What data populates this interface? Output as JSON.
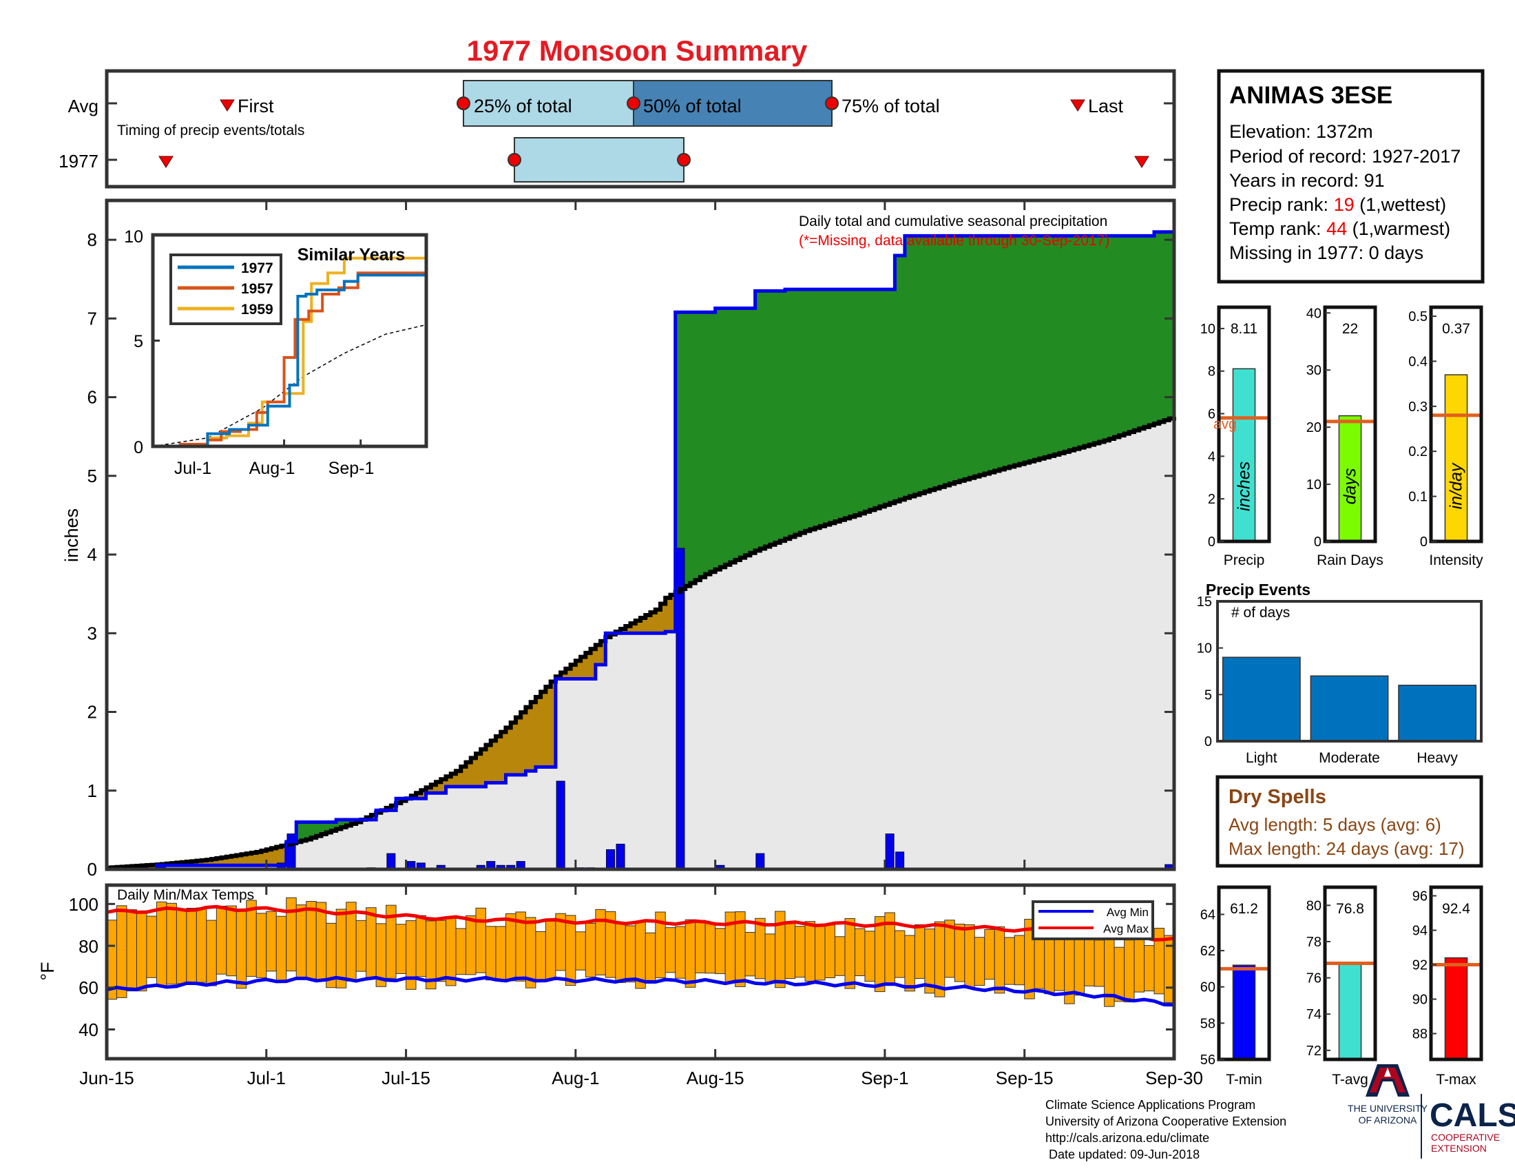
{
  "title": "1977 Monsoon Summary",
  "timing": {
    "row_labels": [
      "Avg",
      "1977"
    ],
    "avg_labels": {
      "first": "First",
      "p25": "25% of total",
      "p50": "50% of total",
      "p75": "75% of total",
      "last": "Last"
    },
    "note": "Timing of precip events/totals",
    "avg": {
      "first": "Jun-30",
      "p25": "Jul-24",
      "p50": "Aug-6",
      "p75": "Aug-26",
      "last": "Sep-16"
    },
    "year": {
      "first": "Jun-20",
      "p25": "Jul-28",
      "p50": "Aug-10",
      "last": "Sep-28"
    }
  },
  "station": {
    "name": "ANIMAS 3ESE",
    "elevation_label": "Elevation: 1372m",
    "period_label": "Period of record: 1927-2017",
    "years_label": "Years in record: 91",
    "precip_rank_prefix": "Precip rank: ",
    "precip_rank_value": "19",
    "precip_rank_suffix": " (1,wettest)",
    "temp_rank_prefix": "Temp rank: ",
    "temp_rank_value": "44",
    "temp_rank_suffix": " (1,warmest)",
    "missing_label": "Missing in 1977: 0 days"
  },
  "colors": {
    "blue": "#0000ee",
    "green": "#228b22",
    "brown": "#b8860b",
    "gray_fill": "#e8e8e8",
    "orange_bar": "#ffa500",
    "red": "#ee0000",
    "title_red": "#e31b23",
    "light_blue": "#add8e6",
    "steel_blue": "#4682b4",
    "avg_orange": "#e06020"
  },
  "main": {
    "ylabel": "inches",
    "annotation": "Daily total and cumulative seasonal precipitation",
    "missing_note": "(*=Missing, data available through 30-Sep-2017)",
    "x_ticks": [
      "Jun-15",
      "Jul-1",
      "Jul-15",
      "Aug-1",
      "Aug-15",
      "Sep-1",
      "Sep-15",
      "Sep-30"
    ],
    "y_ticks": [
      "0",
      "1",
      "2",
      "3",
      "4",
      "5",
      "6",
      "7",
      "8"
    ]
  },
  "inset": {
    "title": "Similar Years",
    "x_ticks": [
      "Jul-1",
      "Aug-1",
      "Sep-1"
    ],
    "y_ticks": [
      "0",
      "5",
      "10"
    ],
    "legend": [
      "1977",
      "1957",
      "1959"
    ]
  },
  "temps": {
    "title": "Daily Min/Max Temps",
    "ylabel": "°F",
    "y_ticks": [
      "40",
      "60",
      "80",
      "100"
    ],
    "legend": [
      "Avg Min",
      "Avg Max"
    ]
  },
  "stat_panels": [
    {
      "label": "Precip",
      "value": 8.11,
      "value_text": "8.11",
      "avg": 5.8,
      "ylim": [
        0,
        11
      ],
      "ticks": [
        "0",
        "2",
        "4",
        "6",
        "8",
        "10"
      ],
      "unit": "inches",
      "color": "#40e0d0",
      "avg_label": "avg"
    },
    {
      "label": "Rain Days",
      "value": 22,
      "value_text": "22",
      "avg": 21,
      "ylim": [
        0,
        41
      ],
      "ticks": [
        "0",
        "10",
        "20",
        "30",
        "40"
      ],
      "unit": "days",
      "color": "#7cfc00"
    },
    {
      "label": "Intensity",
      "value": 0.37,
      "value_text": "0.37",
      "avg": 0.28,
      "ylim": [
        0,
        0.52
      ],
      "ticks": [
        "0",
        "0.1",
        "0.2",
        "0.3",
        "0.4",
        "0.5"
      ],
      "unit": "in/day",
      "color": "#ffd700"
    }
  ],
  "events": {
    "title": "Precip Events",
    "ylabel": "# of days",
    "categories": [
      "Light",
      "Moderate",
      "Heavy"
    ],
    "values": [
      9,
      7,
      6
    ],
    "y_ticks": [
      "0",
      "5",
      "10",
      "15"
    ]
  },
  "dry_spells": {
    "title": "Dry Spells",
    "avg_length": "Avg length: 5 days (avg: 6)",
    "max_length": "Max length: 24 days (avg: 17)"
  },
  "temp_panels": [
    {
      "label": "T-min",
      "value": 61.2,
      "value_text": "61.2",
      "avg": 61.0,
      "ylim": [
        56,
        65.5
      ],
      "ticks": [
        "56",
        "58",
        "60",
        "62",
        "64"
      ],
      "color": "#0000ff"
    },
    {
      "label": "T-avg",
      "value": 76.8,
      "value_text": "76.8",
      "avg": 76.8,
      "ylim": [
        71.5,
        81
      ],
      "ticks": [
        "72",
        "74",
        "76",
        "78",
        "80"
      ],
      "color": "#40e0d0"
    },
    {
      "label": "T-max",
      "value": 92.4,
      "value_text": "92.4",
      "avg": 92.0,
      "ylim": [
        86.5,
        96.5
      ],
      "ticks": [
        "88",
        "90",
        "92",
        "94",
        "96"
      ],
      "color": "#ff0000"
    }
  ],
  "footer": {
    "line1": "Climate Science Applications Program",
    "line2": "University of Arizona Cooperative Extension",
    "line3": "http://cals.arizona.edu/climate",
    "line4": " Date updated: 09-Jun-2018"
  },
  "logos": {
    "ua_line1": "THE UNIVERSITY",
    "ua_line2": "OF ARIZONA",
    "cals": "CALS",
    "coop1": "COOPERATIVE",
    "coop2": "EXTENSION"
  },
  "chart_data": {
    "type": "area",
    "title": "1977 Monsoon Summary",
    "ylabel": "inches",
    "ylim": [
      0,
      8.5
    ],
    "x_range": [
      "Jun-15",
      "Sep-30"
    ],
    "cumulative_avg": [
      [
        0,
        0.02
      ],
      [
        5,
        0.06
      ],
      [
        10,
        0.12
      ],
      [
        15,
        0.22
      ],
      [
        20,
        0.38
      ],
      [
        25,
        0.6
      ],
      [
        30,
        0.9
      ],
      [
        35,
        1.25
      ],
      [
        40,
        1.8
      ],
      [
        45,
        2.45
      ],
      [
        50,
        2.95
      ],
      [
        55,
        3.3
      ],
      [
        56,
        3.45
      ],
      [
        60,
        3.75
      ],
      [
        65,
        4.05
      ],
      [
        70,
        4.3
      ],
      [
        75,
        4.5
      ],
      [
        80,
        4.72
      ],
      [
        85,
        4.92
      ],
      [
        90,
        5.1
      ],
      [
        95,
        5.27
      ],
      [
        100,
        5.45
      ],
      [
        107,
        5.75
      ]
    ],
    "cumulative_1977": [
      [
        0,
        0
      ],
      [
        5,
        0.05
      ],
      [
        12,
        0.05
      ],
      [
        17,
        0.05
      ],
      [
        18,
        0.35
      ],
      [
        19,
        0.6
      ],
      [
        22,
        0.6
      ],
      [
        23,
        0.63
      ],
      [
        26,
        0.63
      ],
      [
        27,
        0.75
      ],
      [
        28,
        0.75
      ],
      [
        29,
        0.9
      ],
      [
        30,
        0.9
      ],
      [
        32,
        0.97
      ],
      [
        34,
        1.05
      ],
      [
        38,
        1.1
      ],
      [
        40,
        1.2
      ],
      [
        42,
        1.25
      ],
      [
        43,
        1.3
      ],
      [
        44,
        1.3
      ],
      [
        45,
        2.42
      ],
      [
        48,
        2.42
      ],
      [
        49,
        2.6
      ],
      [
        50,
        3.0
      ],
      [
        55,
        3.0
      ],
      [
        56,
        3.02
      ],
      [
        57,
        7.08
      ],
      [
        61,
        7.13
      ],
      [
        65,
        7.35
      ],
      [
        68,
        7.37
      ],
      [
        78,
        7.37
      ],
      [
        79,
        7.8
      ],
      [
        80,
        8.05
      ],
      [
        105,
        8.1
      ],
      [
        107,
        8.1
      ]
    ],
    "daily_1977": [
      [
        5,
        0.05
      ],
      [
        17,
        0.08
      ],
      [
        18,
        0.45
      ],
      [
        26,
        0.02
      ],
      [
        28,
        0.2
      ],
      [
        30,
        0.1
      ],
      [
        31,
        0.08
      ],
      [
        33,
        0.05
      ],
      [
        37,
        0.05
      ],
      [
        38,
        0.1
      ],
      [
        39,
        0.05
      ],
      [
        40,
        0.05
      ],
      [
        41,
        0.1
      ],
      [
        45,
        1.12
      ],
      [
        47,
        0.02
      ],
      [
        48,
        0.02
      ],
      [
        50,
        0.25
      ],
      [
        51,
        0.32
      ],
      [
        57,
        4.08
      ],
      [
        61,
        0.05
      ],
      [
        65,
        0.2
      ],
      [
        78,
        0.45
      ],
      [
        79,
        0.22
      ],
      [
        106,
        0.06
      ]
    ],
    "temps_avg_min": [
      [
        0,
        59
      ],
      [
        10,
        62
      ],
      [
        20,
        64
      ],
      [
        40,
        64
      ],
      [
        60,
        63
      ],
      [
        80,
        61
      ],
      [
        90,
        59
      ],
      [
        100,
        56
      ],
      [
        107,
        52
      ]
    ],
    "temps_avg_max": [
      [
        0,
        96
      ],
      [
        10,
        98
      ],
      [
        20,
        97
      ],
      [
        30,
        94
      ],
      [
        40,
        92
      ],
      [
        60,
        91
      ],
      [
        80,
        90
      ],
      [
        95,
        87
      ],
      [
        107,
        83
      ]
    ],
    "similar_years": [
      {
        "name": "1977",
        "points": [
          [
            0,
            0
          ],
          [
            0.12,
            0.0
          ],
          [
            0.2,
            0.6
          ],
          [
            0.28,
            0.8
          ],
          [
            0.35,
            1.0
          ],
          [
            0.42,
            1.9
          ],
          [
            0.5,
            2.9
          ],
          [
            0.53,
            7.1
          ],
          [
            0.56,
            7.2
          ],
          [
            0.6,
            7.4
          ],
          [
            0.65,
            7.4
          ],
          [
            0.7,
            7.8
          ],
          [
            0.75,
            8.1
          ],
          [
            1,
            8.1
          ]
        ]
      },
      {
        "name": "1957",
        "points": [
          [
            0,
            0
          ],
          [
            0.1,
            0.1
          ],
          [
            0.2,
            0.3
          ],
          [
            0.25,
            0.7
          ],
          [
            0.32,
            0.8
          ],
          [
            0.38,
            1.6
          ],
          [
            0.42,
            2.1
          ],
          [
            0.48,
            4.2
          ],
          [
            0.52,
            6.0
          ],
          [
            0.57,
            6.4
          ],
          [
            0.62,
            7.2
          ],
          [
            0.68,
            7.5
          ],
          [
            0.75,
            8.2
          ],
          [
            1,
            8.2
          ]
        ]
      },
      {
        "name": "1959",
        "points": [
          [
            0,
            0
          ],
          [
            0.15,
            0.0
          ],
          [
            0.2,
            0.4
          ],
          [
            0.27,
            0.5
          ],
          [
            0.35,
            1.1
          ],
          [
            0.4,
            2.1
          ],
          [
            0.48,
            2.5
          ],
          [
            0.55,
            5.9
          ],
          [
            0.58,
            7.7
          ],
          [
            0.64,
            8.2
          ],
          [
            0.7,
            8.9
          ],
          [
            1,
            8.9
          ]
        ]
      }
    ],
    "similar_avg": [
      [
        0,
        0
      ],
      [
        0.2,
        0.4
      ],
      [
        0.4,
        1.8
      ],
      [
        0.55,
        3.3
      ],
      [
        0.7,
        4.4
      ],
      [
        0.85,
        5.3
      ],
      [
        1,
        5.75
      ]
    ]
  }
}
